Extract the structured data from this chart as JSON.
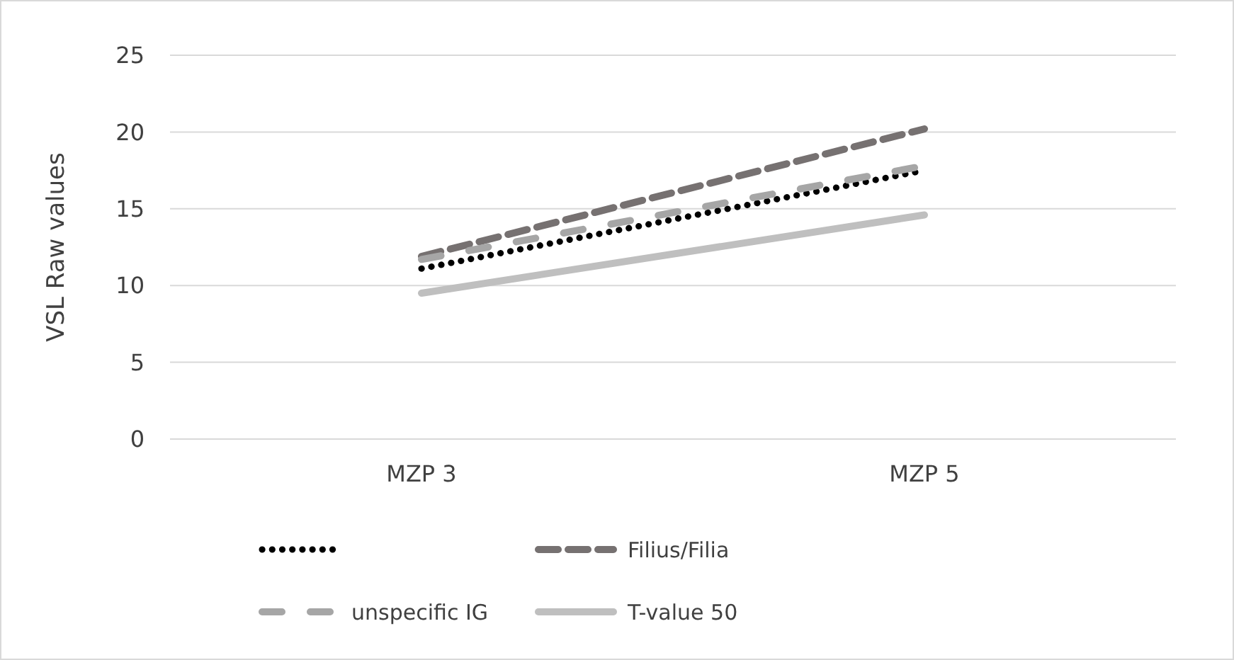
{
  "chart_data": {
    "type": "line",
    "ylabel": "VSL Raw values",
    "categories": [
      "MZP 3",
      "MZP 5"
    ],
    "ylim": [
      0,
      25
    ],
    "yticks": [
      0,
      5,
      10,
      15,
      20,
      25
    ],
    "grid": "y",
    "legend": "bottom",
    "series": [
      {
        "color": "#000000",
        "line_style": "dotted",
        "values": [
          11.1,
          17.5
        ]
      },
      {
        "name": "Filius/Filia",
        "color": "#767171",
        "line_style": "dashed",
        "values": [
          11.9,
          20.2
        ]
      },
      {
        "name": "unspecific IG",
        "color": "#a6a6a6",
        "line_style": "dashed",
        "values": [
          11.7,
          17.8
        ]
      },
      {
        "name": "T-value 50",
        "color": "#bfbfbf",
        "line_style": "solid",
        "values": [
          9.5,
          14.6
        ]
      }
    ]
  }
}
